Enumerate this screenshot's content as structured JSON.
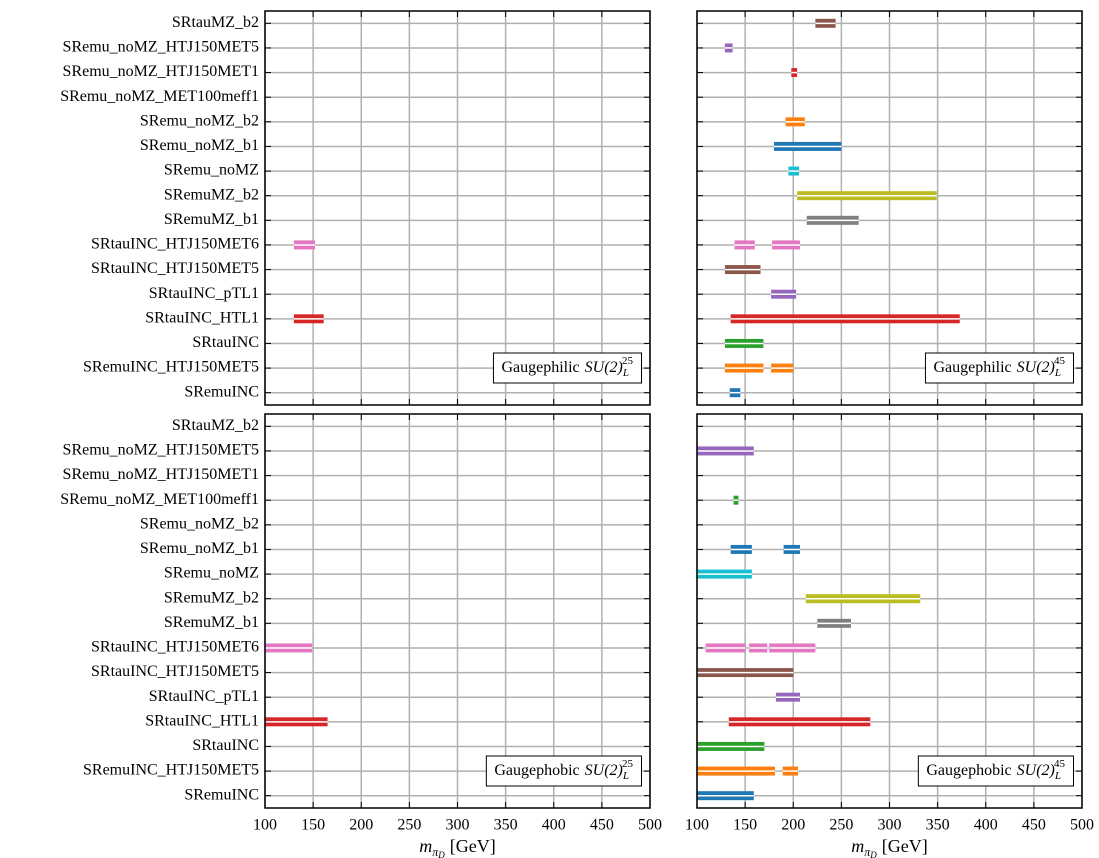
{
  "chart_data": [
    {
      "type": "interval",
      "categories": [
        "SRtauMZ_b2",
        "SRemu_noMZ_HTJ150MET5",
        "SRemu_noMZ_HTJ150MET1",
        "SRemu_noMZ_MET100meff1",
        "SRemu_noMZ_b2",
        "SRemu_noMZ_b1",
        "SRemu_noMZ",
        "SRemuMZ_b2",
        "SRemuMZ_b1",
        "SRtauINC_HTJ150MET6",
        "SRtauINC_HTJ150MET5",
        "SRtauINC_pTL1",
        "SRtauINC_HTL1",
        "SRtauINC",
        "SRemuINC_HTJ150MET5",
        "SRemuINC"
      ],
      "colors": [
        "#8c564b",
        "#9467bd",
        "#d62728",
        "#2ca02c",
        "#ff7f0e",
        "#1f77b4",
        "#17becf",
        "#bcbd22",
        "#7f7f7f",
        "#e377c2",
        "#8c564b",
        "#9467bd",
        "#d62728",
        "#2ca02c",
        "#ff7f0e",
        "#1f77b4"
      ],
      "values": [
        [],
        [],
        [],
        [],
        [],
        [],
        [],
        [],
        [],
        [
          [
            130,
            152
          ]
        ],
        [],
        [],
        [
          [
            130,
            161
          ]
        ],
        [],
        [],
        []
      ],
      "xlim": [
        100,
        500
      ],
      "xticks": [
        100,
        150,
        200,
        250,
        300,
        350,
        400,
        450,
        500
      ],
      "xticklabels": false,
      "grid": true,
      "annotation": {
        "text": "Gaugephilic",
        "group": "SU(2)",
        "sub": "L",
        "sup": "25"
      }
    },
    {
      "type": "interval",
      "colors": [
        "#8c564b",
        "#9467bd",
        "#d62728",
        "#2ca02c",
        "#ff7f0e",
        "#1f77b4",
        "#17becf",
        "#bcbd22",
        "#7f7f7f",
        "#e377c2",
        "#8c564b",
        "#9467bd",
        "#d62728",
        "#2ca02c",
        "#ff7f0e",
        "#1f77b4"
      ],
      "values": [
        [
          [
            223,
            244
          ]
        ],
        [
          [
            129,
            137
          ]
        ],
        [
          [
            198,
            204
          ]
        ],
        [],
        [
          [
            192,
            212
          ]
        ],
        [
          [
            180,
            250
          ]
        ],
        [
          [
            195,
            206
          ]
        ],
        [
          [
            204,
            349
          ]
        ],
        [
          [
            214,
            268
          ]
        ],
        [
          [
            139,
            160
          ],
          [
            178,
            207
          ]
        ],
        [
          [
            129,
            166
          ]
        ],
        [
          [
            177,
            203
          ]
        ],
        [
          [
            135,
            373
          ]
        ],
        [
          [
            129,
            169
          ]
        ],
        [
          [
            129,
            169
          ],
          [
            177,
            200
          ]
        ],
        [
          [
            134,
            145
          ]
        ]
      ],
      "xlim": [
        100,
        500
      ],
      "xticks": [
        100,
        150,
        200,
        250,
        300,
        350,
        400,
        450,
        500
      ],
      "xticklabels": false,
      "grid": true,
      "annotation": {
        "text": "Gaugephilic",
        "group": "SU(2)",
        "sub": "L",
        "sup": "45"
      }
    },
    {
      "type": "interval",
      "categories": [
        "SRtauMZ_b2",
        "SRemu_noMZ_HTJ150MET5",
        "SRemu_noMZ_HTJ150MET1",
        "SRemu_noMZ_MET100meff1",
        "SRemu_noMZ_b2",
        "SRemu_noMZ_b1",
        "SRemu_noMZ",
        "SRemuMZ_b2",
        "SRemuMZ_b1",
        "SRtauINC_HTJ150MET6",
        "SRtauINC_HTJ150MET5",
        "SRtauINC_pTL1",
        "SRtauINC_HTL1",
        "SRtauINC",
        "SRemuINC_HTJ150MET5",
        "SRemuINC"
      ],
      "colors": [
        "#8c564b",
        "#9467bd",
        "#d62728",
        "#2ca02c",
        "#ff7f0e",
        "#1f77b4",
        "#17becf",
        "#bcbd22",
        "#7f7f7f",
        "#e377c2",
        "#8c564b",
        "#9467bd",
        "#d62728",
        "#2ca02c",
        "#ff7f0e",
        "#1f77b4"
      ],
      "values": [
        [],
        [],
        [],
        [],
        [],
        [],
        [],
        [],
        [],
        [
          [
            100,
            149
          ]
        ],
        [],
        [],
        [
          [
            100,
            165
          ]
        ],
        [],
        [],
        []
      ],
      "xlim": [
        100,
        500
      ],
      "xticks": [
        100,
        150,
        200,
        250,
        300,
        350,
        400,
        450,
        500
      ],
      "xticklabels": true,
      "grid": true,
      "xlabel": {
        "symbol": "m",
        "sub": "π",
        "subsub": "D",
        "unit": "[GeV]"
      },
      "annotation": {
        "text": "Gaugephobic",
        "group": "SU(2)",
        "sub": "L",
        "sup": "25"
      }
    },
    {
      "type": "interval",
      "colors": [
        "#8c564b",
        "#9467bd",
        "#d62728",
        "#2ca02c",
        "#ff7f0e",
        "#1f77b4",
        "#17becf",
        "#bcbd22",
        "#7f7f7f",
        "#e377c2",
        "#8c564b",
        "#9467bd",
        "#d62728",
        "#2ca02c",
        "#ff7f0e",
        "#1f77b4"
      ],
      "values": [
        [],
        [
          [
            100,
            159
          ]
        ],
        [],
        [
          [
            138,
            143
          ]
        ],
        [],
        [
          [
            135,
            157
          ],
          [
            190,
            207
          ]
        ],
        [
          [
            100,
            157
          ]
        ],
        [
          [
            213,
            332
          ]
        ],
        [
          [
            225,
            260
          ]
        ],
        [
          [
            109,
            150
          ],
          [
            154,
            173
          ],
          [
            175,
            223
          ]
        ],
        [
          [
            100,
            200
          ]
        ],
        [
          [
            182,
            207
          ]
        ],
        [
          [
            133,
            280
          ]
        ],
        [
          [
            100,
            170
          ]
        ],
        [
          [
            100,
            181
          ],
          [
            189,
            205
          ]
        ],
        [
          [
            100,
            159
          ]
        ]
      ],
      "xlim": [
        100,
        500
      ],
      "xticks": [
        100,
        150,
        200,
        250,
        300,
        350,
        400,
        450,
        500
      ],
      "xticklabels": true,
      "grid": true,
      "xlabel": {
        "symbol": "m",
        "sub": "π",
        "subsub": "D",
        "unit": "[GeV]"
      },
      "annotation": {
        "text": "Gaugephobic",
        "group": "SU(2)",
        "sub": "L",
        "sup": "45"
      }
    }
  ]
}
